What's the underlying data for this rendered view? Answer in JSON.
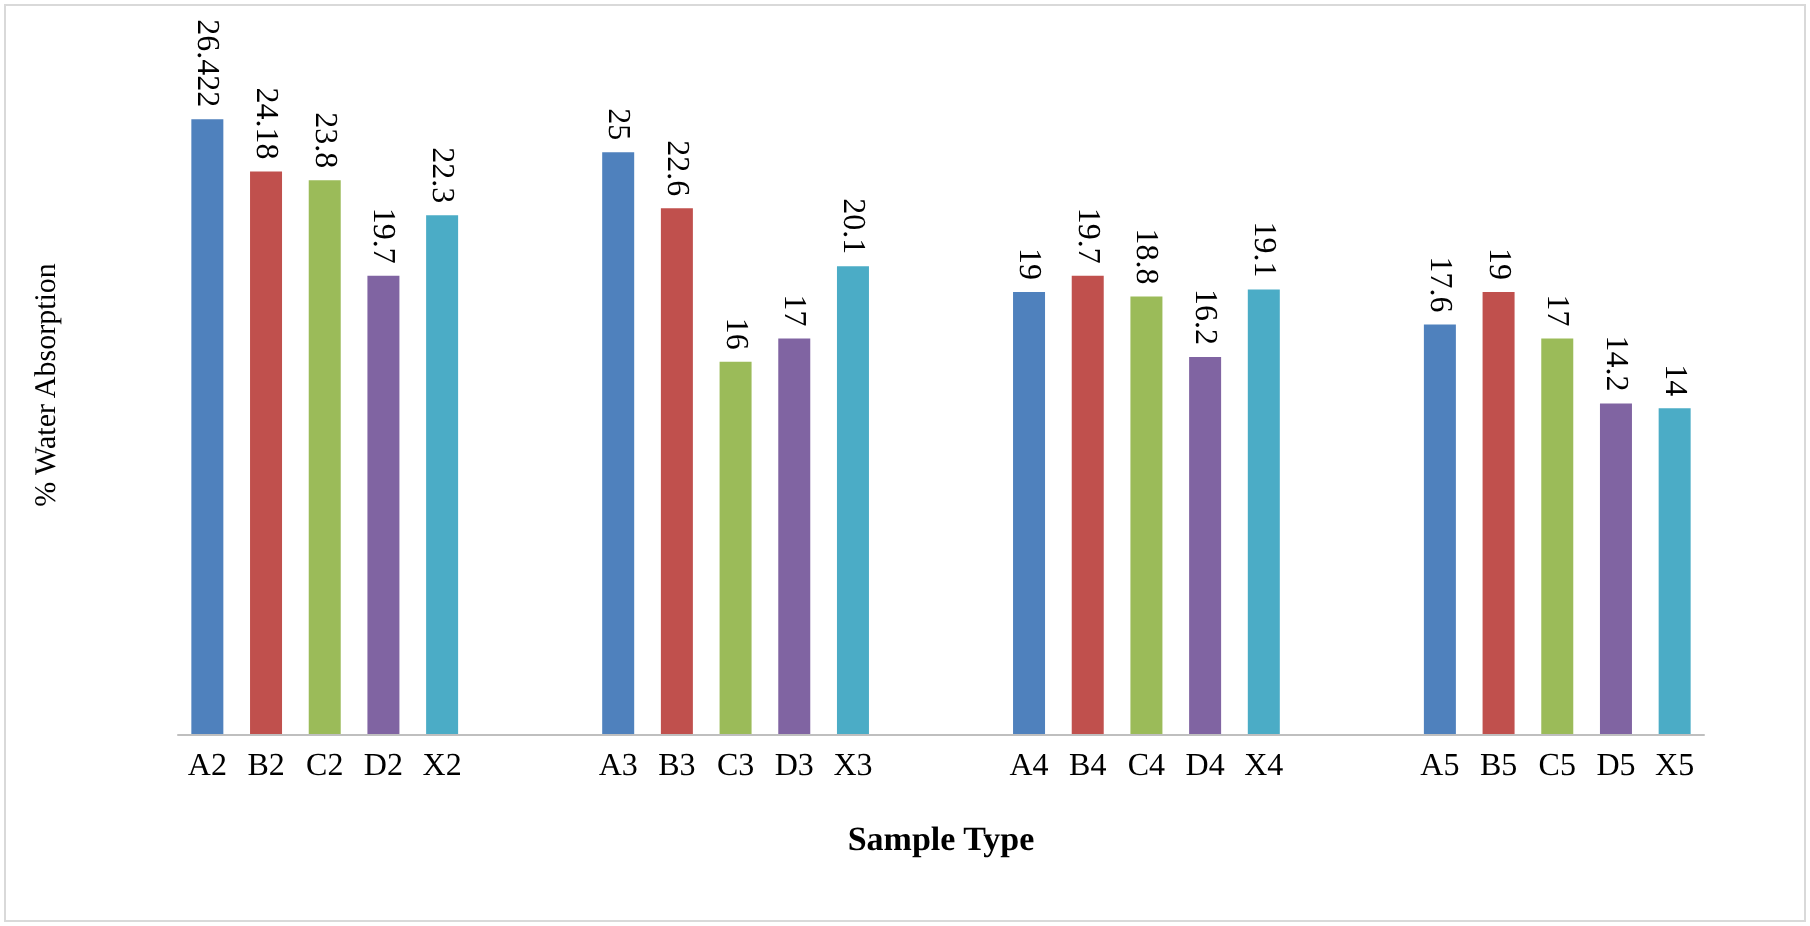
{
  "chart_data": {
    "type": "bar",
    "xlabel": "Sample Type",
    "ylabel": "% Water Absorption",
    "categories": [
      "A2",
      "B2",
      "C2",
      "D2",
      "X2",
      null,
      null,
      "A3",
      "B3",
      "C3",
      "D3",
      "X3",
      null,
      null,
      "A4",
      "B4",
      "C4",
      "D4",
      "X4",
      null,
      null,
      "A5",
      "B5",
      "C5",
      "D5",
      "X5"
    ],
    "values": [
      26.422,
      24.18,
      23.8,
      19.7,
      22.3,
      null,
      null,
      25,
      22.6,
      16,
      17,
      20.1,
      null,
      null,
      19,
      19.7,
      18.8,
      16.2,
      19.1,
      null,
      null,
      17.6,
      19,
      17,
      14.2,
      14
    ],
    "colors": [
      "#4f81bd",
      "#c0504d",
      "#9bbb59",
      "#8064a2",
      "#4bacc6",
      null,
      null,
      "#4f81bd",
      "#c0504d",
      "#9bbb59",
      "#8064a2",
      "#4bacc6",
      null,
      null,
      "#4f81bd",
      "#c0504d",
      "#9bbb59",
      "#8064a2",
      "#4bacc6",
      null,
      null,
      "#4f81bd",
      "#c0504d",
      "#9bbb59",
      "#8064a2",
      "#4bacc6"
    ],
    "data_labels": true,
    "grid": false
  }
}
